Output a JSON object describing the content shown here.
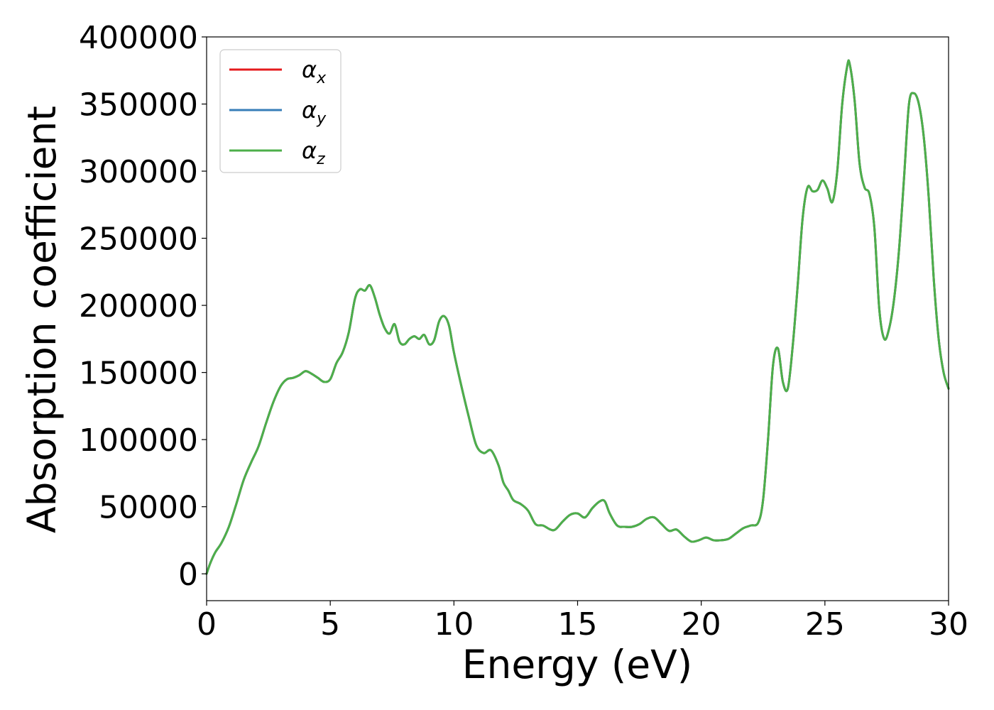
{
  "chart_data": {
    "type": "line",
    "title": "",
    "xlabel": "Energy (eV)",
    "ylabel": "Absorption coefficient",
    "xlim": [
      0,
      30
    ],
    "ylim": [
      -20000,
      400000
    ],
    "xticks": [
      0,
      5,
      10,
      15,
      20,
      25,
      30
    ],
    "xtick_labels": [
      "0",
      "5",
      "10",
      "15",
      "20",
      "25",
      "30"
    ],
    "yticks": [
      0,
      50000,
      100000,
      150000,
      200000,
      250000,
      300000,
      350000,
      400000
    ],
    "ytick_labels": [
      "0",
      "50000",
      "100000",
      "150000",
      "200000",
      "250000",
      "300000",
      "350000",
      "400000"
    ],
    "grid": false,
    "legend_position": "top-left",
    "series": [
      {
        "name": "αx",
        "legend_base": "α",
        "legend_sub": "x",
        "color": "#e41a1c",
        "x": [
          0,
          0.15,
          0.35,
          0.6,
          0.9,
          1.2,
          1.5,
          1.8,
          2.1,
          2.4,
          2.7,
          3.0,
          3.25,
          3.5,
          3.75,
          4.0,
          4.25,
          4.5,
          4.75,
          5.0,
          5.25,
          5.5,
          5.75,
          6.0,
          6.2,
          6.4,
          6.6,
          6.8,
          7.0,
          7.2,
          7.4,
          7.6,
          7.8,
          8.0,
          8.2,
          8.4,
          8.6,
          8.8,
          9.0,
          9.2,
          9.4,
          9.6,
          9.8,
          10.0,
          10.3,
          10.6,
          10.9,
          11.2,
          11.5,
          11.8,
          12.0,
          12.2,
          12.4,
          12.7,
          13.0,
          13.3,
          13.6,
          13.9,
          14.1,
          14.4,
          14.7,
          15.0,
          15.3,
          15.6,
          15.9,
          16.1,
          16.3,
          16.6,
          16.9,
          17.2,
          17.5,
          17.8,
          18.1,
          18.4,
          18.7,
          19.0,
          19.3,
          19.6,
          19.9,
          20.2,
          20.5,
          20.8,
          21.1,
          21.4,
          21.7,
          22.0,
          22.3,
          22.5,
          22.7,
          22.9,
          23.1,
          23.3,
          23.5,
          23.7,
          23.9,
          24.1,
          24.3,
          24.5,
          24.7,
          24.9,
          25.1,
          25.3,
          25.5,
          25.7,
          25.9,
          26.0,
          26.2,
          26.4,
          26.6,
          26.8,
          27.0,
          27.2,
          27.4,
          27.6,
          27.8,
          28.0,
          28.2,
          28.4,
          28.6,
          28.8,
          29.0,
          29.2,
          29.4,
          29.6,
          29.8,
          30.0
        ],
        "y": [
          0,
          8000,
          16000,
          23000,
          35000,
          52000,
          70000,
          83000,
          95000,
          112000,
          128000,
          140000,
          145000,
          146000,
          148000,
          151000,
          149000,
          146000,
          143000,
          145000,
          157000,
          165000,
          180000,
          205000,
          212000,
          211000,
          215000,
          206000,
          193000,
          183000,
          179000,
          186000,
          173000,
          171000,
          175000,
          177000,
          175000,
          178000,
          171000,
          174000,
          188000,
          192000,
          185000,
          165000,
          140000,
          117000,
          96000,
          90000,
          92000,
          81000,
          68000,
          62000,
          55000,
          52000,
          47000,
          37000,
          36000,
          33000,
          33000,
          39000,
          44000,
          45000,
          42000,
          49000,
          54000,
          54000,
          45000,
          36000,
          35000,
          35000,
          37000,
          41000,
          42000,
          37000,
          32000,
          33000,
          28000,
          24000,
          25000,
          27000,
          25000,
          25000,
          26000,
          30000,
          34000,
          36000,
          38000,
          55000,
          100000,
          155000,
          168000,
          143000,
          138000,
          170000,
          215000,
          265000,
          288000,
          285000,
          286000,
          293000,
          287000,
          277000,
          300000,
          350000,
          378000,
          380000,
          353000,
          306000,
          288000,
          283000,
          258000,
          197000,
          175000,
          183000,
          205000,
          242000,
          295000,
          350000,
          358000,
          350000,
          325000,
          280000,
          220000,
          175000,
          150000,
          138000
        ]
      },
      {
        "name": "αy",
        "legend_base": "α",
        "legend_sub": "y",
        "color": "#377eb8",
        "x": [
          0,
          0.15,
          0.35,
          0.6,
          0.9,
          1.2,
          1.5,
          1.8,
          2.1,
          2.4,
          2.7,
          3.0,
          3.25,
          3.5,
          3.75,
          4.0,
          4.25,
          4.5,
          4.75,
          5.0,
          5.25,
          5.5,
          5.75,
          6.0,
          6.2,
          6.4,
          6.6,
          6.8,
          7.0,
          7.2,
          7.4,
          7.6,
          7.8,
          8.0,
          8.2,
          8.4,
          8.6,
          8.8,
          9.0,
          9.2,
          9.4,
          9.6,
          9.8,
          10.0,
          10.3,
          10.6,
          10.9,
          11.2,
          11.5,
          11.8,
          12.0,
          12.2,
          12.4,
          12.7,
          13.0,
          13.3,
          13.6,
          13.9,
          14.1,
          14.4,
          14.7,
          15.0,
          15.3,
          15.6,
          15.9,
          16.1,
          16.3,
          16.6,
          16.9,
          17.2,
          17.5,
          17.8,
          18.1,
          18.4,
          18.7,
          19.0,
          19.3,
          19.6,
          19.9,
          20.2,
          20.5,
          20.8,
          21.1,
          21.4,
          21.7,
          22.0,
          22.3,
          22.5,
          22.7,
          22.9,
          23.1,
          23.3,
          23.5,
          23.7,
          23.9,
          24.1,
          24.3,
          24.5,
          24.7,
          24.9,
          25.1,
          25.3,
          25.5,
          25.7,
          25.9,
          26.0,
          26.2,
          26.4,
          26.6,
          26.8,
          27.0,
          27.2,
          27.4,
          27.6,
          27.8,
          28.0,
          28.2,
          28.4,
          28.6,
          28.8,
          29.0,
          29.2,
          29.4,
          29.6,
          29.8,
          30.0
        ],
        "y": [
          0,
          8000,
          16000,
          23000,
          35000,
          52000,
          70000,
          83000,
          95000,
          112000,
          128000,
          140000,
          145000,
          146000,
          148000,
          151000,
          149000,
          146000,
          143000,
          145000,
          157000,
          165000,
          180000,
          205000,
          212000,
          211000,
          215000,
          206000,
          193000,
          183000,
          179000,
          186000,
          173000,
          171000,
          175000,
          177000,
          175000,
          178000,
          171000,
          174000,
          188000,
          192000,
          185000,
          165000,
          140000,
          117000,
          96000,
          90000,
          92000,
          81000,
          68000,
          62000,
          55000,
          52000,
          47000,
          37000,
          36000,
          33000,
          33000,
          39000,
          44000,
          45000,
          42000,
          49000,
          54000,
          54000,
          45000,
          36000,
          35000,
          35000,
          37000,
          41000,
          42000,
          37000,
          32000,
          33000,
          28000,
          24000,
          25000,
          27000,
          25000,
          25000,
          26000,
          30000,
          34000,
          36000,
          38000,
          55000,
          100000,
          155000,
          168000,
          143000,
          138000,
          170000,
          215000,
          265000,
          288000,
          285000,
          286000,
          293000,
          287000,
          277000,
          300000,
          350000,
          378000,
          380000,
          353000,
          306000,
          288000,
          283000,
          258000,
          197000,
          175000,
          183000,
          205000,
          242000,
          295000,
          350000,
          358000,
          350000,
          325000,
          280000,
          220000,
          175000,
          150000,
          138000
        ]
      },
      {
        "name": "αz",
        "legend_base": "α",
        "legend_sub": "z",
        "color": "#4daf4a",
        "x": [
          0,
          0.15,
          0.35,
          0.6,
          0.9,
          1.2,
          1.5,
          1.8,
          2.1,
          2.4,
          2.7,
          3.0,
          3.25,
          3.5,
          3.75,
          4.0,
          4.25,
          4.5,
          4.75,
          5.0,
          5.25,
          5.5,
          5.75,
          6.0,
          6.2,
          6.4,
          6.6,
          6.8,
          7.0,
          7.2,
          7.4,
          7.6,
          7.8,
          8.0,
          8.2,
          8.4,
          8.6,
          8.8,
          9.0,
          9.2,
          9.4,
          9.6,
          9.8,
          10.0,
          10.3,
          10.6,
          10.9,
          11.2,
          11.5,
          11.8,
          12.0,
          12.2,
          12.4,
          12.7,
          13.0,
          13.3,
          13.6,
          13.9,
          14.1,
          14.4,
          14.7,
          15.0,
          15.3,
          15.6,
          15.9,
          16.1,
          16.3,
          16.6,
          16.9,
          17.2,
          17.5,
          17.8,
          18.1,
          18.4,
          18.7,
          19.0,
          19.3,
          19.6,
          19.9,
          20.2,
          20.5,
          20.8,
          21.1,
          21.4,
          21.7,
          22.0,
          22.3,
          22.5,
          22.7,
          22.9,
          23.1,
          23.3,
          23.5,
          23.7,
          23.9,
          24.1,
          24.3,
          24.5,
          24.7,
          24.9,
          25.1,
          25.3,
          25.5,
          25.7,
          25.9,
          26.0,
          26.2,
          26.4,
          26.6,
          26.8,
          27.0,
          27.2,
          27.4,
          27.6,
          27.8,
          28.0,
          28.2,
          28.4,
          28.6,
          28.8,
          29.0,
          29.2,
          29.4,
          29.6,
          29.8,
          30.0
        ],
        "y": [
          0,
          8000,
          16000,
          23000,
          35000,
          52000,
          70000,
          83000,
          95000,
          112000,
          128000,
          140000,
          145000,
          146000,
          148000,
          151000,
          149000,
          146000,
          143000,
          145000,
          157000,
          165000,
          180000,
          205000,
          212000,
          211000,
          215000,
          206000,
          193000,
          183000,
          179000,
          186000,
          173000,
          171000,
          175000,
          177000,
          175000,
          178000,
          171000,
          174000,
          188000,
          192000,
          185000,
          165000,
          140000,
          117000,
          96000,
          90000,
          92000,
          81000,
          68000,
          62000,
          55000,
          52000,
          47000,
          37000,
          36000,
          33000,
          33000,
          39000,
          44000,
          45000,
          42000,
          49000,
          54000,
          54000,
          45000,
          36000,
          35000,
          35000,
          37000,
          41000,
          42000,
          37000,
          32000,
          33000,
          28000,
          24000,
          25000,
          27000,
          25000,
          25000,
          26000,
          30000,
          34000,
          36000,
          38000,
          55000,
          100000,
          155000,
          168000,
          143000,
          138000,
          170000,
          215000,
          265000,
          288000,
          285000,
          286000,
          293000,
          287000,
          277000,
          300000,
          350000,
          378000,
          380000,
          353000,
          306000,
          288000,
          283000,
          258000,
          197000,
          175000,
          183000,
          205000,
          242000,
          295000,
          350000,
          358000,
          350000,
          325000,
          280000,
          220000,
          175000,
          150000,
          138000
        ]
      }
    ]
  }
}
